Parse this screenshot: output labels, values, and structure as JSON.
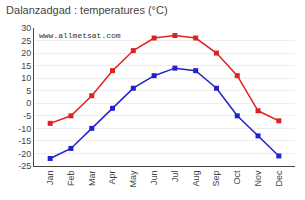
{
  "chart_data": {
    "type": "line",
    "title": "Dalanzadgad : temperatures (°C)",
    "categories": [
      "Jan",
      "Feb",
      "Mar",
      "Apr",
      "May",
      "Jun",
      "Jul",
      "Aug",
      "Sep",
      "Oct",
      "Nov",
      "Dec"
    ],
    "series": [
      {
        "color": "#dd2222",
        "marker": "square",
        "values": [
          -8,
          -5,
          3,
          13,
          21,
          26,
          27,
          26,
          20,
          11,
          -3,
          -7
        ]
      },
      {
        "color": "#2222cc",
        "marker": "square",
        "values": [
          -22,
          -18,
          -10,
          -2,
          6,
          11,
          14,
          13,
          6,
          -5,
          -13,
          -21
        ]
      }
    ],
    "ylim": [
      -25,
      30
    ],
    "yticks": [
      -25,
      -20,
      -15,
      -10,
      -5,
      0,
      5,
      10,
      15,
      20,
      25,
      30
    ],
    "grid": true,
    "annotations": [
      "www.allmetsat.com"
    ]
  }
}
